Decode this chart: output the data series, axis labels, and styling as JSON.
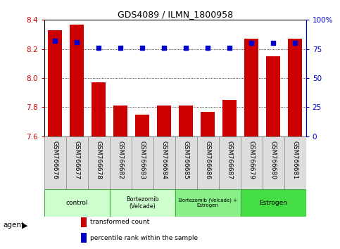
{
  "title": "GDS4089 / ILMN_1800958",
  "samples": [
    "GSM766676",
    "GSM766677",
    "GSM766678",
    "GSM766682",
    "GSM766683",
    "GSM766684",
    "GSM766685",
    "GSM766686",
    "GSM766687",
    "GSM766679",
    "GSM766680",
    "GSM766681"
  ],
  "transformed_count": [
    8.33,
    8.37,
    7.97,
    7.81,
    7.75,
    7.81,
    7.81,
    7.77,
    7.85,
    8.27,
    8.15,
    8.27
  ],
  "percentile_rank": [
    82,
    81,
    76,
    76,
    76,
    76,
    76,
    76,
    76,
    80,
    80,
    80
  ],
  "bar_color": "#cc0000",
  "dot_color": "#0000cc",
  "ylim_left": [
    7.6,
    8.4
  ],
  "ylim_right": [
    0,
    100
  ],
  "yticks_left": [
    7.6,
    7.8,
    8.0,
    8.2,
    8.4
  ],
  "yticks_right": [
    0,
    25,
    50,
    75,
    100
  ],
  "ytick_labels_right": [
    "0",
    "25",
    "50",
    "75",
    "100%"
  ],
  "groups": [
    {
      "label": "control",
      "start": 0,
      "end": 3,
      "color": "#ccffcc",
      "border": "#44aa44",
      "fontsize": 9
    },
    {
      "label": "Bortezomib\n(Velcade)",
      "start": 3,
      "end": 6,
      "color": "#ccffcc",
      "border": "#44aa44",
      "fontsize": 8
    },
    {
      "label": "Bortezomib (Velcade) +\nEstrogen",
      "start": 6,
      "end": 9,
      "color": "#88ee88",
      "border": "#44aa44",
      "fontsize": 7
    },
    {
      "label": "Estrogen",
      "start": 9,
      "end": 12,
      "color": "#44dd44",
      "border": "#44aa44",
      "fontsize": 9
    }
  ],
  "agent_label": "agent",
  "legend_bar_label": "transformed count",
  "legend_dot_label": "percentile rank within the sample",
  "grid_color": "#000000",
  "tick_color_left": "#cc0000",
  "tick_color_right": "#0000cc",
  "baseline": 7.6,
  "sample_box_color": "#dddddd",
  "sample_box_edge": "#888888"
}
